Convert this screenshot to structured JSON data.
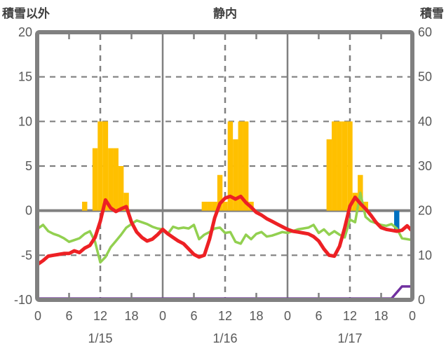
{
  "header": {
    "left_axis_label": "積雪以外",
    "title": "静内",
    "right_axis_label": "積雪"
  },
  "chart_data": {
    "type": "bar+line combo (weather observation)",
    "title": "静内",
    "left_axis": {
      "label": "積雪以外",
      "min": -10,
      "max": 20,
      "ticks": [
        "20",
        "15",
        "10",
        "5",
        "0",
        "-5",
        "-10"
      ],
      "tick_values": [
        20,
        15,
        10,
        5,
        0,
        -5,
        -10
      ]
    },
    "right_axis": {
      "label": "積雪",
      "min": 0,
      "max": 60,
      "ticks": [
        "60",
        "50",
        "40",
        "30",
        "20",
        "10",
        "0"
      ],
      "tick_values": [
        60,
        50,
        40,
        30,
        20,
        10,
        0
      ]
    },
    "x_axis": {
      "total_hours": 72,
      "hour_tick_interval": 6,
      "hour_labels": [
        "0",
        "6",
        "12",
        "18",
        "0",
        "6",
        "12",
        "18",
        "0",
        "6",
        "12",
        "18",
        "0"
      ],
      "date_labels": [
        "1/15",
        "1/16",
        "1/17"
      ],
      "date_label_hours": [
        12,
        36,
        60
      ]
    },
    "grid": {
      "color": "#808080",
      "h_dashed_values": [
        15,
        10,
        5,
        -5
      ],
      "zero_line_value": 0,
      "v_solid_hours": [
        24,
        48
      ],
      "v_dashed_hours": [
        12,
        36,
        60
      ],
      "border_tick_hours": [
        6,
        18,
        30,
        42,
        54,
        66
      ]
    },
    "series": [
      {
        "name": "orange-bars",
        "type": "bar",
        "axis": "left",
        "color": "#FFC000",
        "points": [
          [
            9,
            1
          ],
          [
            11,
            7
          ],
          [
            12,
            10
          ],
          [
            13,
            10
          ],
          [
            14,
            7
          ],
          [
            15,
            7
          ],
          [
            16,
            5
          ],
          [
            17,
            2
          ],
          [
            32,
            1
          ],
          [
            33,
            1
          ],
          [
            34,
            1
          ],
          [
            35,
            4
          ],
          [
            36,
            1
          ],
          [
            37,
            10
          ],
          [
            38,
            8
          ],
          [
            39,
            10
          ],
          [
            40,
            10
          ],
          [
            41,
            1
          ],
          [
            56,
            8
          ],
          [
            57,
            10
          ],
          [
            58,
            10
          ],
          [
            59,
            10
          ],
          [
            60,
            10
          ],
          [
            61,
            2
          ],
          [
            62,
            4
          ],
          [
            63,
            1
          ]
        ]
      },
      {
        "name": "blue-bar",
        "type": "bar",
        "axis": "left",
        "color": "#0070C0",
        "points": [
          [
            69,
            -2.4
          ]
        ]
      },
      {
        "name": "green-line",
        "type": "line",
        "axis": "left",
        "color": "#92D050",
        "width": 3.5,
        "points": [
          [
            0,
            -2.0
          ],
          [
            1,
            -1.6
          ],
          [
            2,
            -2.3
          ],
          [
            3,
            -2.6
          ],
          [
            4,
            -2.8
          ],
          [
            5,
            -3.1
          ],
          [
            6,
            -3.5
          ],
          [
            7,
            -3.3
          ],
          [
            8,
            -3.1
          ],
          [
            9,
            -2.6
          ],
          [
            10,
            -2.3
          ],
          [
            11,
            -3.5
          ],
          [
            12,
            -5.8
          ],
          [
            13,
            -5.2
          ],
          [
            14,
            -4.1
          ],
          [
            15,
            -3.4
          ],
          [
            16,
            -2.7
          ],
          [
            17,
            -1.9
          ],
          [
            18,
            -1.5
          ],
          [
            19,
            -1.1
          ],
          [
            20,
            -1.3
          ],
          [
            21,
            -1.5
          ],
          [
            22,
            -1.8
          ],
          [
            23,
            -2.0
          ],
          [
            24,
            -2.1
          ],
          [
            25,
            -2.6
          ],
          [
            26,
            -1.8
          ],
          [
            27,
            -2.0
          ],
          [
            28,
            -1.9
          ],
          [
            29,
            -2.0
          ],
          [
            30,
            -1.6
          ],
          [
            31,
            -3.2
          ],
          [
            32,
            -2.7
          ],
          [
            33,
            -2.4
          ],
          [
            34,
            -2.0
          ],
          [
            35,
            -1.9
          ],
          [
            36,
            -2.5
          ],
          [
            37,
            -2.4
          ],
          [
            38,
            -3.5
          ],
          [
            39,
            -3.7
          ],
          [
            40,
            -2.7
          ],
          [
            41,
            -3.2
          ],
          [
            42,
            -2.6
          ],
          [
            43,
            -2.4
          ],
          [
            44,
            -2.9
          ],
          [
            45,
            -2.8
          ],
          [
            46,
            -2.6
          ],
          [
            47,
            -2.4
          ],
          [
            48,
            -2.5
          ],
          [
            49,
            -2.3
          ],
          [
            50,
            -2.1
          ],
          [
            51,
            -2.0
          ],
          [
            52,
            -1.9
          ],
          [
            53,
            -1.6
          ],
          [
            54,
            -2.5
          ],
          [
            55,
            -2.1
          ],
          [
            56,
            -2.7
          ],
          [
            57,
            -2.3
          ],
          [
            58,
            -2.7
          ],
          [
            59,
            -3.0
          ],
          [
            60,
            -1.0
          ],
          [
            61,
            -1.3
          ],
          [
            62,
            2.0
          ],
          [
            63,
            -0.7
          ],
          [
            64,
            -1.2
          ],
          [
            65,
            -1.4
          ],
          [
            66,
            -1.6
          ],
          [
            67,
            -1.7
          ],
          [
            68,
            -1.5
          ],
          [
            69,
            -2.0
          ],
          [
            70,
            -3.1
          ],
          [
            71,
            -3.2
          ],
          [
            72,
            -3.3
          ]
        ]
      },
      {
        "name": "red-line",
        "type": "line",
        "axis": "left",
        "color": "#ED2024",
        "width": 5,
        "points": [
          [
            0,
            -6.0
          ],
          [
            1,
            -5.6
          ],
          [
            2,
            -5.1
          ],
          [
            3,
            -5.0
          ],
          [
            4,
            -4.9
          ],
          [
            5,
            -4.8
          ],
          [
            6,
            -4.8
          ],
          [
            7,
            -4.5
          ],
          [
            8,
            -4.7
          ],
          [
            9,
            -4.2
          ],
          [
            10,
            -3.9
          ],
          [
            11,
            -3.0
          ],
          [
            12,
            -1.2
          ],
          [
            13,
            1.2
          ],
          [
            14,
            0.3
          ],
          [
            15,
            -0.1
          ],
          [
            16,
            0.2
          ],
          [
            17,
            0.45
          ],
          [
            18,
            -1.3
          ],
          [
            19,
            -2.4
          ],
          [
            20,
            -3.0
          ],
          [
            21,
            -3.4
          ],
          [
            22,
            -3.2
          ],
          [
            23,
            -2.7
          ],
          [
            24,
            -2.1
          ],
          [
            25,
            -2.6
          ],
          [
            26,
            -3.0
          ],
          [
            27,
            -3.4
          ],
          [
            28,
            -3.7
          ],
          [
            29,
            -4.3
          ],
          [
            30,
            -4.9
          ],
          [
            31,
            -5.2
          ],
          [
            32,
            -5.0
          ],
          [
            33,
            -3.2
          ],
          [
            34,
            -0.8
          ],
          [
            35,
            0.8
          ],
          [
            36,
            1.4
          ],
          [
            37,
            1.6
          ],
          [
            38,
            1.3
          ],
          [
            39,
            1.6
          ],
          [
            40,
            0.9
          ],
          [
            41,
            0.4
          ],
          [
            42,
            -0.2
          ],
          [
            43,
            -0.5
          ],
          [
            44,
            -0.9
          ],
          [
            45,
            -1.2
          ],
          [
            46,
            -1.5
          ],
          [
            47,
            -1.8
          ],
          [
            48,
            -2.1
          ],
          [
            49,
            -2.3
          ],
          [
            50,
            -2.4
          ],
          [
            51,
            -2.5
          ],
          [
            52,
            -2.6
          ],
          [
            53,
            -2.9
          ],
          [
            54,
            -3.4
          ],
          [
            55,
            -4.3
          ],
          [
            56,
            -5.0
          ],
          [
            57,
            -5.1
          ],
          [
            58,
            -4.0
          ],
          [
            59,
            -1.9
          ],
          [
            60,
            0.5
          ],
          [
            61,
            1.5
          ],
          [
            62,
            0.8
          ],
          [
            63,
            0.2
          ],
          [
            64,
            -0.5
          ],
          [
            65,
            -1.3
          ],
          [
            66,
            -1.9
          ],
          [
            67,
            -2.1
          ],
          [
            68,
            -2.2
          ],
          [
            69,
            -2.3
          ],
          [
            70,
            -2.2
          ],
          [
            71,
            -1.7
          ],
          [
            72,
            -2.3
          ]
        ]
      },
      {
        "name": "purple-line",
        "type": "line",
        "axis": "right",
        "color": "#7030A0",
        "width": 3.5,
        "points": [
          [
            0,
            0.3
          ],
          [
            68,
            0.3
          ],
          [
            70,
            3
          ],
          [
            72,
            3
          ]
        ]
      }
    ]
  }
}
